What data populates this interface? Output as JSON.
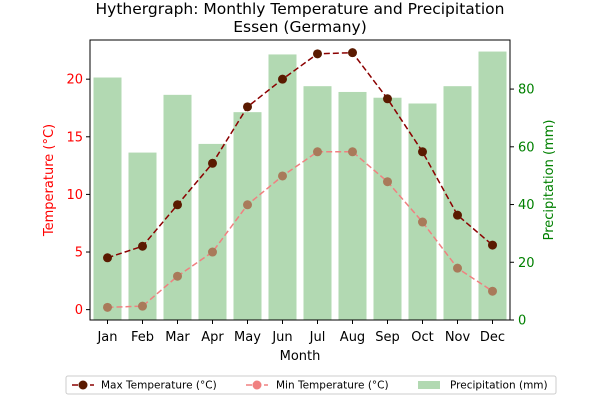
{
  "chart_data": {
    "type": "bar+line",
    "title": "Hythergraph: Monthly Temperature and Precipitation",
    "subtitle": "Essen (Germany)",
    "xlabel": "Month",
    "ylabel_left": "Temperature (°C)",
    "ylabel_right": "Precipitation (mm)",
    "categories": [
      "Jan",
      "Feb",
      "Mar",
      "Apr",
      "May",
      "Jun",
      "Jul",
      "Aug",
      "Sep",
      "Oct",
      "Nov",
      "Dec"
    ],
    "ylim_left": [
      -0.9,
      23.4
    ],
    "ylim_right": [
      0,
      97
    ],
    "yticks_left": [
      0,
      5,
      10,
      15,
      20
    ],
    "yticks_right": [
      0,
      20,
      40,
      60,
      80
    ],
    "series": [
      {
        "name": "Max Temperature (°C)",
        "kind": "line",
        "axis": "left",
        "color": "#8b0000",
        "marker_color": "#5a1a00",
        "values": [
          4.5,
          5.5,
          9.1,
          12.7,
          17.6,
          20.0,
          22.2,
          22.3,
          18.3,
          13.7,
          8.2,
          5.6
        ]
      },
      {
        "name": "Min Temperature (°C)",
        "kind": "line",
        "axis": "left",
        "color": "#f08080",
        "marker_color": "#a97a5a",
        "values": [
          0.2,
          0.3,
          2.9,
          5.0,
          9.1,
          11.6,
          13.7,
          13.7,
          11.1,
          7.6,
          3.6,
          1.6
        ]
      },
      {
        "name": "Precipitation (mm)",
        "kind": "bar",
        "axis": "right",
        "color": "#b2d9b2",
        "values": [
          84,
          58,
          78,
          61,
          72,
          92,
          81,
          79,
          77,
          75,
          81,
          93
        ]
      }
    ],
    "colors": {
      "left_axis": "#ff0000",
      "right_axis": "#008000"
    },
    "legend_position": "bottom-center",
    "grid": false
  }
}
